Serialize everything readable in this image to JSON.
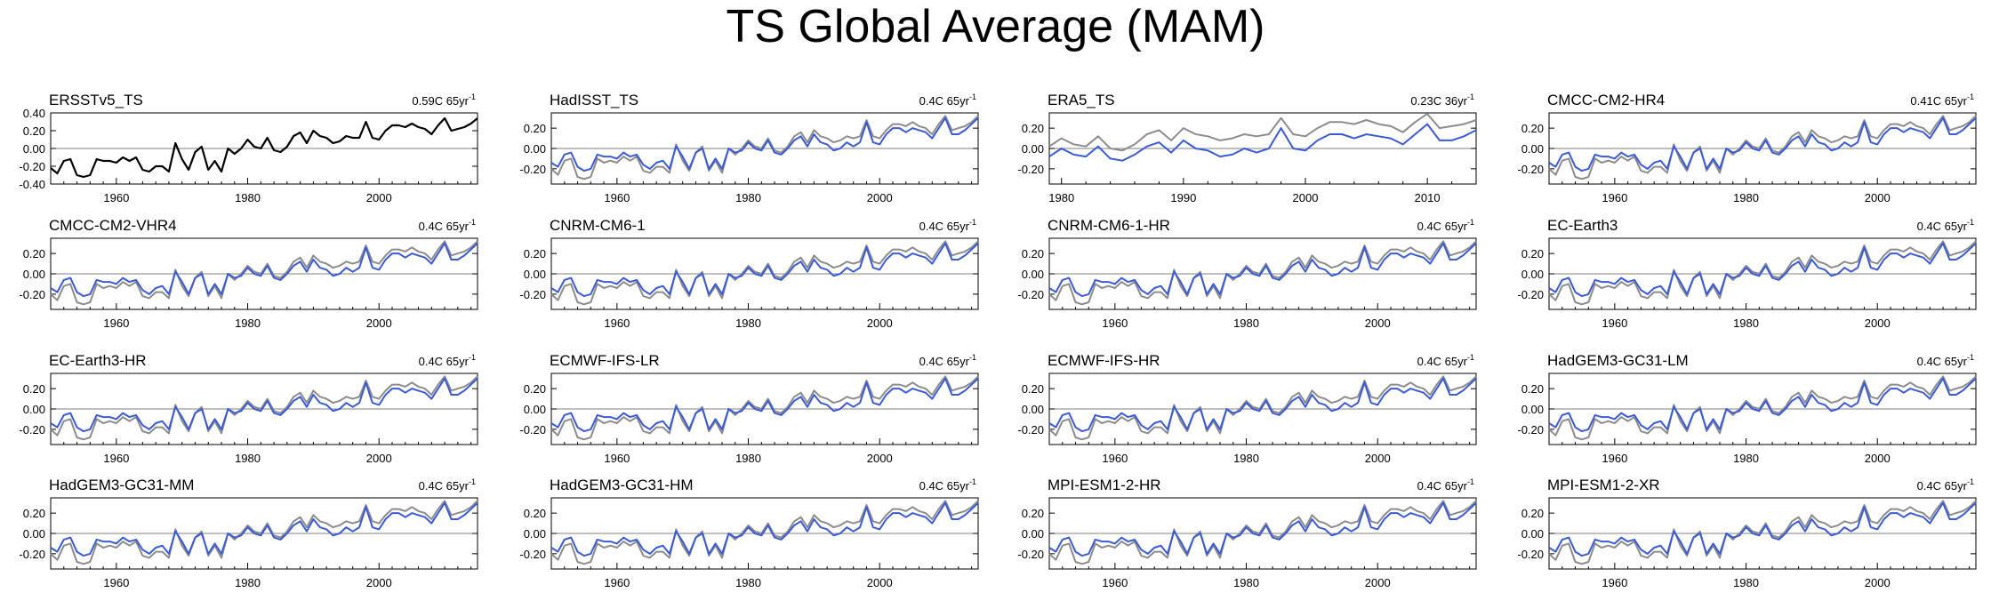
{
  "page": {
    "title": "TS Global Average (MAM)"
  },
  "colors": {
    "observation": "#000000",
    "reference": "#8c8c8c",
    "model": "#3b5bd6",
    "zero_line": "#808080"
  },
  "chart_data": [
    {
      "type": "line",
      "name": "ERSSTv5_TS",
      "trend": "0.59C 65yr",
      "trend_sup": "-1",
      "xlim": [
        1950,
        2015
      ],
      "ylim": [
        -0.4,
        0.4
      ],
      "yticks": [
        "0.40",
        "0.20",
        "0.00",
        "-0.20",
        "-0.40"
      ],
      "xticks": [
        "1960",
        "1980",
        "2000"
      ],
      "series": [
        "observation"
      ]
    },
    {
      "type": "line",
      "name": "HadISST_TS",
      "trend": "0.4C 65yr",
      "trend_sup": "-1",
      "xlim": [
        1950,
        2015
      ],
      "ylim": [
        -0.35,
        0.35
      ],
      "yticks": [
        "0.20",
        "0.00",
        "-0.20"
      ],
      "xticks": [
        "1960",
        "1980",
        "2000"
      ],
      "series": [
        "reference",
        "model"
      ]
    },
    {
      "type": "line",
      "name": "ERA5_TS",
      "trend": "0.23C 36yr",
      "trend_sup": "-1",
      "xlim": [
        1979,
        2014
      ],
      "ylim": [
        -0.35,
        0.35
      ],
      "yticks": [
        "0.20",
        "0.00",
        "-0.20"
      ],
      "xticks": [
        "1980",
        "1990",
        "2000",
        "2010"
      ],
      "series": [
        "reference",
        "model"
      ]
    },
    {
      "type": "line",
      "name": "CMCC-CM2-HR4",
      "trend": "0.41C 65yr",
      "trend_sup": "-1",
      "xlim": [
        1950,
        2015
      ],
      "ylim": [
        -0.35,
        0.35
      ],
      "yticks": [
        "0.20",
        "0.00",
        "-0.20"
      ],
      "xticks": [
        "1960",
        "1980",
        "2000"
      ],
      "series": [
        "reference",
        "model"
      ]
    },
    {
      "type": "line",
      "name": "CMCC-CM2-VHR4",
      "trend": "0.4C 65yr",
      "trend_sup": "-1",
      "xlim": [
        1950,
        2015
      ],
      "ylim": [
        -0.35,
        0.35
      ],
      "yticks": [
        "0.20",
        "0.00",
        "-0.20"
      ],
      "xticks": [
        "1960",
        "1980",
        "2000"
      ],
      "series": [
        "reference",
        "model"
      ]
    },
    {
      "type": "line",
      "name": "CNRM-CM6-1",
      "trend": "0.4C 65yr",
      "trend_sup": "-1",
      "xlim": [
        1950,
        2015
      ],
      "ylim": [
        -0.35,
        0.35
      ],
      "yticks": [
        "0.20",
        "0.00",
        "-0.20"
      ],
      "xticks": [
        "1960",
        "1980",
        "2000"
      ],
      "series": [
        "reference",
        "model"
      ]
    },
    {
      "type": "line",
      "name": "CNRM-CM6-1-HR",
      "trend": "0.4C 65yr",
      "trend_sup": "-1",
      "xlim": [
        1950,
        2015
      ],
      "ylim": [
        -0.35,
        0.35
      ],
      "yticks": [
        "0.20",
        "0.00",
        "-0.20"
      ],
      "xticks": [
        "1960",
        "1980",
        "2000"
      ],
      "series": [
        "reference",
        "model"
      ]
    },
    {
      "type": "line",
      "name": "EC-Earth3",
      "trend": "0.4C 65yr",
      "trend_sup": "-1",
      "xlim": [
        1950,
        2015
      ],
      "ylim": [
        -0.35,
        0.35
      ],
      "yticks": [
        "0.20",
        "0.00",
        "-0.20"
      ],
      "xticks": [
        "1960",
        "1980",
        "2000"
      ],
      "series": [
        "reference",
        "model"
      ]
    },
    {
      "type": "line",
      "name": "EC-Earth3-HR",
      "trend": "0.4C 65yr",
      "trend_sup": "-1",
      "xlim": [
        1950,
        2015
      ],
      "ylim": [
        -0.35,
        0.35
      ],
      "yticks": [
        "0.20",
        "0.00",
        "-0.20"
      ],
      "xticks": [
        "1960",
        "1980",
        "2000"
      ],
      "series": [
        "reference",
        "model"
      ]
    },
    {
      "type": "line",
      "name": "ECMWF-IFS-LR",
      "trend": "0.4C 65yr",
      "trend_sup": "-1",
      "xlim": [
        1950,
        2015
      ],
      "ylim": [
        -0.35,
        0.35
      ],
      "yticks": [
        "0.20",
        "0.00",
        "-0.20"
      ],
      "xticks": [
        "1960",
        "1980",
        "2000"
      ],
      "series": [
        "reference",
        "model"
      ]
    },
    {
      "type": "line",
      "name": "ECMWF-IFS-HR",
      "trend": "0.4C 65yr",
      "trend_sup": "-1",
      "xlim": [
        1950,
        2015
      ],
      "ylim": [
        -0.35,
        0.35
      ],
      "yticks": [
        "0.20",
        "0.00",
        "-0.20"
      ],
      "xticks": [
        "1960",
        "1980",
        "2000"
      ],
      "series": [
        "reference",
        "model"
      ]
    },
    {
      "type": "line",
      "name": "HadGEM3-GC31-LM",
      "trend": "0.4C 65yr",
      "trend_sup": "-1",
      "xlim": [
        1950,
        2015
      ],
      "ylim": [
        -0.35,
        0.35
      ],
      "yticks": [
        "0.20",
        "0.00",
        "-0.20"
      ],
      "xticks": [
        "1960",
        "1980",
        "2000"
      ],
      "series": [
        "reference",
        "model"
      ]
    },
    {
      "type": "line",
      "name": "HadGEM3-GC31-MM",
      "trend": "0.4C 65yr",
      "trend_sup": "-1",
      "xlim": [
        1950,
        2015
      ],
      "ylim": [
        -0.35,
        0.35
      ],
      "yticks": [
        "0.20",
        "0.00",
        "-0.20"
      ],
      "xticks": [
        "1960",
        "1980",
        "2000"
      ],
      "series": [
        "reference",
        "model"
      ]
    },
    {
      "type": "line",
      "name": "HadGEM3-GC31-HM",
      "trend": "0.4C 65yr",
      "trend_sup": "-1",
      "xlim": [
        1950,
        2015
      ],
      "ylim": [
        -0.35,
        0.35
      ],
      "yticks": [
        "0.20",
        "0.00",
        "-0.20"
      ],
      "xticks": [
        "1960",
        "1980",
        "2000"
      ],
      "series": [
        "reference",
        "model"
      ]
    },
    {
      "type": "line",
      "name": "MPI-ESM1-2-HR",
      "trend": "0.4C 65yr",
      "trend_sup": "-1",
      "xlim": [
        1950,
        2015
      ],
      "ylim": [
        -0.35,
        0.35
      ],
      "yticks": [
        "0.20",
        "0.00",
        "-0.20"
      ],
      "xticks": [
        "1960",
        "1980",
        "2000"
      ],
      "series": [
        "reference",
        "model"
      ]
    },
    {
      "type": "line",
      "name": "MPI-ESM1-2-XR",
      "trend": "0.4C 65yr",
      "trend_sup": "-1",
      "xlim": [
        1950,
        2015
      ],
      "ylim": [
        -0.35,
        0.35
      ],
      "yticks": [
        "0.20",
        "0.00",
        "-0.20"
      ],
      "xticks": [
        "1960",
        "1980",
        "2000"
      ],
      "series": [
        "reference",
        "model"
      ]
    }
  ],
  "series_values": {
    "years": [
      1950,
      1951,
      1952,
      1953,
      1954,
      1955,
      1956,
      1957,
      1958,
      1959,
      1960,
      1961,
      1962,
      1963,
      1964,
      1965,
      1966,
      1967,
      1968,
      1969,
      1970,
      1971,
      1972,
      1973,
      1974,
      1975,
      1976,
      1977,
      1978,
      1979,
      1980,
      1981,
      1982,
      1983,
      1984,
      1985,
      1986,
      1987,
      1988,
      1989,
      1990,
      1991,
      1992,
      1993,
      1994,
      1995,
      1996,
      1997,
      1998,
      1999,
      2000,
      2001,
      2002,
      2003,
      2004,
      2005,
      2006,
      2007,
      2008,
      2009,
      2010,
      2011,
      2012,
      2013,
      2014,
      2015
    ],
    "observation": [
      -0.22,
      -0.28,
      -0.14,
      -0.12,
      -0.3,
      -0.32,
      -0.3,
      -0.12,
      -0.14,
      -0.14,
      -0.16,
      -0.1,
      -0.14,
      -0.1,
      -0.24,
      -0.26,
      -0.2,
      -0.2,
      -0.26,
      0.06,
      -0.12,
      -0.24,
      -0.04,
      0.02,
      -0.24,
      -0.14,
      -0.26,
      0.0,
      -0.06,
      0.0,
      0.1,
      0.02,
      0.0,
      0.12,
      -0.02,
      -0.04,
      0.02,
      0.14,
      0.18,
      0.06,
      0.2,
      0.14,
      0.12,
      0.06,
      0.08,
      0.14,
      0.12,
      0.12,
      0.3,
      0.12,
      0.1,
      0.2,
      0.26,
      0.26,
      0.24,
      0.28,
      0.24,
      0.22,
      0.16,
      0.26,
      0.34,
      0.2,
      0.22,
      0.24,
      0.28,
      0.34
    ],
    "reference": [
      -0.2,
      -0.26,
      -0.12,
      -0.1,
      -0.28,
      -0.3,
      -0.28,
      -0.1,
      -0.14,
      -0.12,
      -0.14,
      -0.08,
      -0.12,
      -0.08,
      -0.22,
      -0.24,
      -0.18,
      -0.18,
      -0.24,
      0.04,
      -0.12,
      -0.22,
      -0.04,
      0.02,
      -0.22,
      -0.12,
      -0.24,
      0.0,
      -0.06,
      0.0,
      0.08,
      0.02,
      0.0,
      0.1,
      -0.02,
      -0.04,
      0.02,
      0.12,
      0.16,
      0.06,
      0.18,
      0.12,
      0.1,
      0.06,
      0.08,
      0.12,
      0.1,
      0.12,
      0.28,
      0.12,
      0.1,
      0.18,
      0.24,
      0.24,
      0.22,
      0.26,
      0.22,
      0.2,
      0.14,
      0.24,
      0.32,
      0.18,
      0.2,
      0.22,
      0.26,
      0.32
    ],
    "model": [
      -0.14,
      -0.18,
      -0.06,
      -0.04,
      -0.18,
      -0.22,
      -0.2,
      -0.06,
      -0.08,
      -0.08,
      -0.1,
      -0.04,
      -0.08,
      -0.06,
      -0.16,
      -0.2,
      -0.14,
      -0.12,
      -0.2,
      0.02,
      -0.08,
      -0.2,
      -0.04,
      0.0,
      -0.2,
      -0.1,
      -0.2,
      0.0,
      -0.04,
      -0.02,
      0.06,
      0.0,
      -0.02,
      0.08,
      -0.04,
      -0.06,
      0.0,
      0.08,
      0.12,
      0.02,
      0.14,
      0.06,
      0.04,
      -0.02,
      0.0,
      0.06,
      0.02,
      0.06,
      0.26,
      0.06,
      0.04,
      0.14,
      0.2,
      0.2,
      0.16,
      0.2,
      0.18,
      0.16,
      0.1,
      0.2,
      0.3,
      0.14,
      0.14,
      0.18,
      0.24,
      0.3
    ]
  }
}
